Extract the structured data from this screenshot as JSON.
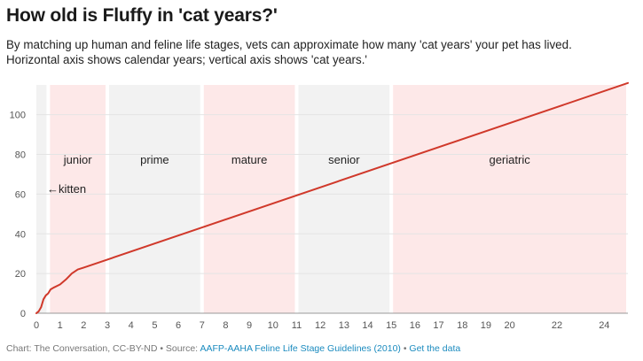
{
  "header": {
    "title": "How old is Fluffy in 'cat years?'",
    "subtitle_line1": "By matching up human and feline life stages, vets can approximate how many 'cat years' your pet has lived.",
    "subtitle_line2": "Horizontal axis shows calendar years; vertical axis shows 'cat years.'"
  },
  "footer": {
    "credit": "Chart: The Conversation, CC-BY-ND",
    "separator1": " • Source: ",
    "source_link": "AAFP-AAHA Feline Life Stage Guidelines (2010)",
    "separator2": " • ",
    "data_link": "Get the data"
  },
  "colors": {
    "line": "#d0392b",
    "band_pink": "#fde8e8",
    "band_gray": "#f2f2f2",
    "grid": "#e4e4e4"
  },
  "chart_data": {
    "type": "line",
    "x_ticks": [
      0,
      1,
      2,
      3,
      4,
      5,
      6,
      7,
      8,
      9,
      10,
      11,
      12,
      13,
      14,
      15,
      16,
      17,
      18,
      19,
      20,
      22,
      24
    ],
    "y_ticks": [
      0,
      20,
      40,
      60,
      80,
      100
    ],
    "xlim": [
      0,
      25
    ],
    "ylim": [
      0,
      115
    ],
    "series": [
      {
        "x": [
          0,
          0.1,
          0.2,
          0.3,
          0.4,
          0.5,
          0.6,
          0.75,
          1,
          1.25,
          1.5,
          1.75,
          2,
          2.5,
          3,
          25
        ],
        "y": [
          0,
          1,
          3,
          7,
          9,
          10,
          12,
          13,
          14.5,
          17,
          20,
          22,
          23,
          25,
          27,
          116
        ]
      }
    ],
    "stages": [
      {
        "label": "",
        "start": 0,
        "end": 0.5,
        "color": "gray"
      },
      {
        "label": "junior",
        "start": 0.5,
        "end": 3,
        "color": "pink"
      },
      {
        "label": "prime",
        "start": 3,
        "end": 7,
        "color": "gray"
      },
      {
        "label": "mature",
        "start": 7,
        "end": 11,
        "color": "pink"
      },
      {
        "label": "senior",
        "start": 11,
        "end": 15,
        "color": "gray"
      },
      {
        "label": "geriatric",
        "start": 15,
        "end": 25,
        "color": "pink"
      }
    ],
    "annotation": "←kitten"
  }
}
